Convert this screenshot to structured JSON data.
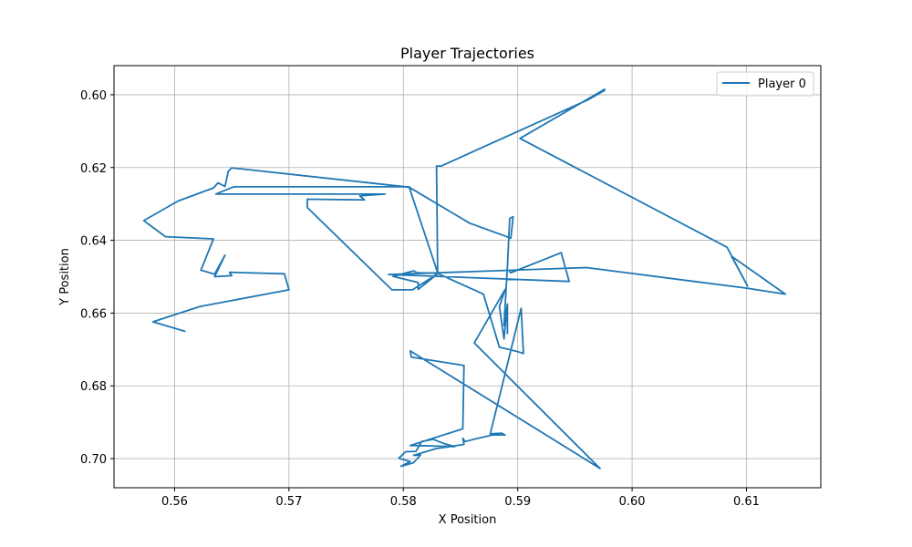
{
  "chart_data": {
    "type": "line",
    "title": "Player Trajectories",
    "xlabel": "X Position",
    "ylabel": "Y Position",
    "xlim": [
      0.5547,
      0.6165
    ],
    "ylim": [
      0.708,
      0.592
    ],
    "y_inverted": true,
    "grid": true,
    "legend_position": "top-right",
    "xticks": [
      "0.56",
      "0.57",
      "0.58",
      "0.59",
      "0.60",
      "0.61"
    ],
    "xtick_values": [
      0.56,
      0.57,
      0.58,
      0.59,
      0.6,
      0.61
    ],
    "yticks": [
      "0.60",
      "0.62",
      "0.64",
      "0.66",
      "0.68",
      "0.70"
    ],
    "ytick_values": [
      0.6,
      0.62,
      0.64,
      0.66,
      0.68,
      0.7
    ],
    "series": [
      {
        "name": "Player 0",
        "color": "#1f77b4",
        "x": [
          0.5609,
          0.5581,
          0.5622,
          0.57,
          0.5696,
          0.5648,
          0.565,
          0.5635,
          0.5644,
          0.5635,
          0.5623,
          0.5634,
          0.5592,
          0.5573,
          0.5603,
          0.5634,
          0.5638,
          0.5644,
          0.5647,
          0.565,
          0.5805,
          0.5858,
          0.5894,
          0.5896,
          0.5893,
          0.5891,
          0.5888,
          0.5891,
          0.5891,
          0.5891,
          0.5888,
          0.5884,
          0.5889,
          0.5862,
          0.5972,
          0.5806,
          0.5807,
          0.5853,
          0.5853,
          0.5852,
          0.5806,
          0.581,
          0.5845,
          0.5836,
          0.5826,
          0.5816,
          0.5811,
          0.5802,
          0.5796,
          0.5806,
          0.5798,
          0.5809,
          0.5815,
          0.5809,
          0.5828,
          0.5853,
          0.5852,
          0.5854,
          0.5864,
          0.5878,
          0.5889,
          0.5886,
          0.5876,
          0.5903,
          0.5905,
          0.5899,
          0.5884,
          0.587,
          0.583,
          0.5812,
          0.5809,
          0.5791,
          0.5813,
          0.5813,
          0.583,
          0.5808,
          0.579,
          0.5716,
          0.5716,
          0.5766,
          0.5762,
          0.5784,
          0.5636,
          0.565,
          0.5652,
          0.5805,
          0.583,
          0.5829,
          0.5833,
          0.5962,
          0.5976,
          0.5976,
          0.5902,
          0.6083,
          0.6101,
          0.6087,
          0.6134,
          0.6099,
          0.596,
          0.5787,
          0.5945,
          0.5938,
          0.5894,
          0.5893
        ],
        "y": [
          0.665,
          0.6624,
          0.6582,
          0.6536,
          0.6492,
          0.6488,
          0.6497,
          0.65,
          0.6441,
          0.6493,
          0.6482,
          0.6396,
          0.639,
          0.6346,
          0.6292,
          0.6256,
          0.6242,
          0.6252,
          0.621,
          0.6201,
          0.6254,
          0.6353,
          0.6394,
          0.6335,
          0.634,
          0.6471,
          0.6634,
          0.6576,
          0.6656,
          0.6575,
          0.6671,
          0.6582,
          0.6535,
          0.6682,
          0.7027,
          0.6704,
          0.6721,
          0.6744,
          0.6746,
          0.6918,
          0.6964,
          0.6964,
          0.6967,
          0.6959,
          0.6947,
          0.6953,
          0.698,
          0.6981,
          0.6999,
          0.7008,
          0.7021,
          0.7011,
          0.699,
          0.6991,
          0.6973,
          0.6961,
          0.6944,
          0.6953,
          0.6945,
          0.6935,
          0.6935,
          0.693,
          0.6932,
          0.6587,
          0.6711,
          0.6705,
          0.6694,
          0.6548,
          0.6491,
          0.6489,
          0.6484,
          0.6499,
          0.6516,
          0.6535,
          0.6492,
          0.6536,
          0.6536,
          0.631,
          0.6287,
          0.6289,
          0.6278,
          0.6273,
          0.6273,
          0.6255,
          0.6253,
          0.6253,
          0.6489,
          0.6196,
          0.6196,
          0.6013,
          0.5988,
          0.5985,
          0.612,
          0.6419,
          0.6526,
          0.6444,
          0.6548,
          0.6531,
          0.6475,
          0.6494,
          0.6513,
          0.6434,
          0.6489,
          0.6487
        ]
      }
    ]
  }
}
